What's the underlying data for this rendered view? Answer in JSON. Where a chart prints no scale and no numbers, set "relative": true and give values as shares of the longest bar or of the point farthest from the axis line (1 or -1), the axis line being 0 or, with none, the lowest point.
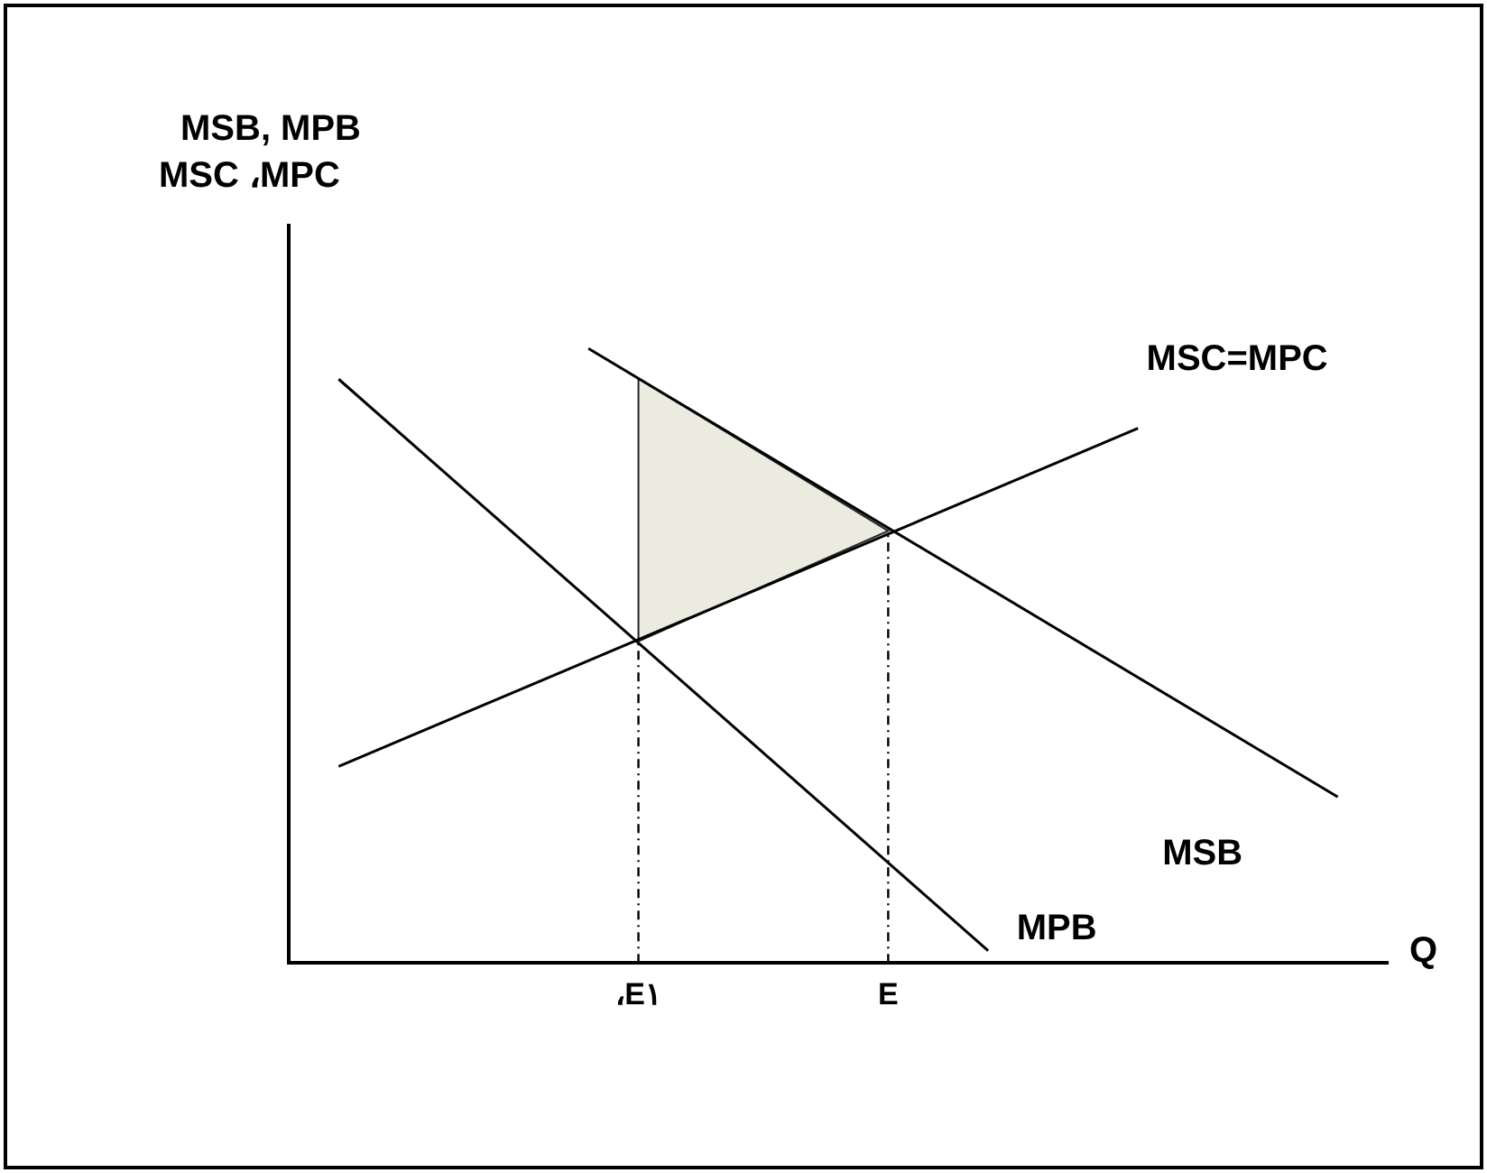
{
  "chart_data": {
    "type": "line",
    "relative": true,
    "ylabel": "MSB, MPB\nMSC ،MPC",
    "xlabel": "Q",
    "tick_labels": "x",
    "grid": false,
    "legend": false,
    "marker": "none",
    "categories": [
      null,
      null,
      null,
      null,
      null,
      null,
      null,
      "،E١",
      null,
      null,
      null,
      null,
      "E",
      null,
      null,
      null,
      null,
      null,
      null,
      null,
      null,
      null,
      null
    ],
    "series": [
      {
        "name": "MSB",
        "color": "#000000",
        "values": [
          null,
          null,
          null,
          null,
          null,
          null,
          1.0,
          null,
          null,
          null,
          null,
          null,
          null,
          null,
          null,
          null,
          null,
          null,
          null,
          null,
          null,
          0.27,
          null
        ]
      },
      {
        "name": "MPB",
        "color": "#000000",
        "values": [
          null,
          0.95,
          null,
          null,
          null,
          null,
          null,
          null,
          null,
          null,
          null,
          null,
          null,
          null,
          0.02,
          null,
          null,
          null,
          null,
          null,
          null,
          null,
          null
        ]
      },
      {
        "name": "MSC=MPC",
        "color": "#000000",
        "values": [
          null,
          0.32,
          null,
          null,
          null,
          null,
          null,
          null,
          null,
          null,
          null,
          null,
          null,
          null,
          null,
          null,
          null,
          0.87,
          null,
          null,
          null,
          null,
          null
        ]
      }
    ],
    "ref_lines": [
      {
        "axis": "x",
        "value": "،E١",
        "line_style": "dashed",
        "color": "#000000"
      },
      {
        "axis": "x",
        "value": "E",
        "line_style": "dashed",
        "color": "#000000"
      }
    ]
  }
}
